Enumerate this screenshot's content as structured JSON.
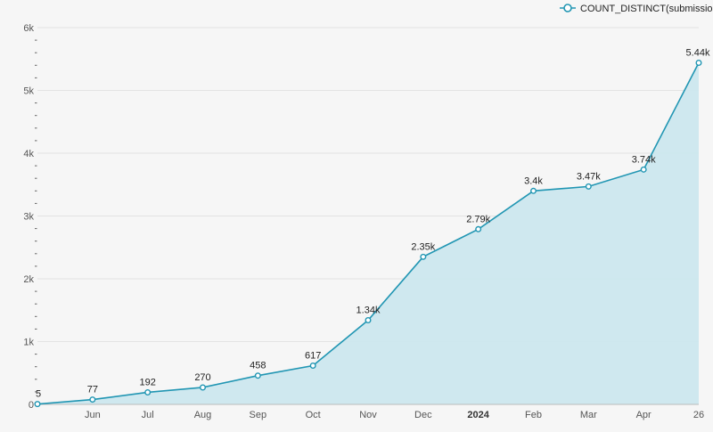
{
  "chart_data": {
    "type": "area",
    "title": "",
    "xlabel": "",
    "ylabel": "",
    "series": [
      {
        "name": "COUNT_DISTINCT(submission_id)",
        "color": "#2196b3",
        "fill": "#cce7ee",
        "values": [
          5,
          77,
          192,
          270,
          458,
          617,
          1340,
          2350,
          2790,
          3400,
          3470,
          3740,
          5440
        ],
        "labels": [
          "5",
          "77",
          "192",
          "270",
          "458",
          "617",
          "1.34k",
          "2.35k",
          "2.79k",
          "3.4k",
          "3.47k",
          "3.74k",
          "5.44k"
        ],
        "x": [
          0,
          1,
          2,
          3,
          4,
          5,
          6,
          7,
          8,
          9,
          10,
          11,
          12
        ]
      }
    ],
    "ylim": [
      0,
      6000
    ],
    "xlim": [
      0,
      12
    ],
    "y_ticks": [
      {
        "value": 0,
        "label": "0"
      },
      {
        "value": 1000,
        "label": "1k"
      },
      {
        "value": 2000,
        "label": "2k"
      },
      {
        "value": 3000,
        "label": "3k"
      },
      {
        "value": 4000,
        "label": "4k"
      },
      {
        "value": 5000,
        "label": "5k"
      },
      {
        "value": 6000,
        "label": "6k"
      }
    ],
    "y_minor_step": 200,
    "x_ticks": [
      {
        "value": 1,
        "label": "Jun",
        "bold": false
      },
      {
        "value": 2,
        "label": "Jul",
        "bold": false
      },
      {
        "value": 3,
        "label": "Aug",
        "bold": false
      },
      {
        "value": 4,
        "label": "Sep",
        "bold": false
      },
      {
        "value": 5,
        "label": "Oct",
        "bold": false
      },
      {
        "value": 6,
        "label": "Nov",
        "bold": false
      },
      {
        "value": 7,
        "label": "Dec",
        "bold": false
      },
      {
        "value": 8,
        "label": "2024",
        "bold": true
      },
      {
        "value": 9,
        "label": "Feb",
        "bold": false
      },
      {
        "value": 10,
        "label": "Mar",
        "bold": false
      },
      {
        "value": 11,
        "label": "Apr",
        "bold": false
      },
      {
        "value": 12,
        "label": "26",
        "bold": false
      }
    ],
    "grid": true,
    "legend_position": "top-right"
  }
}
